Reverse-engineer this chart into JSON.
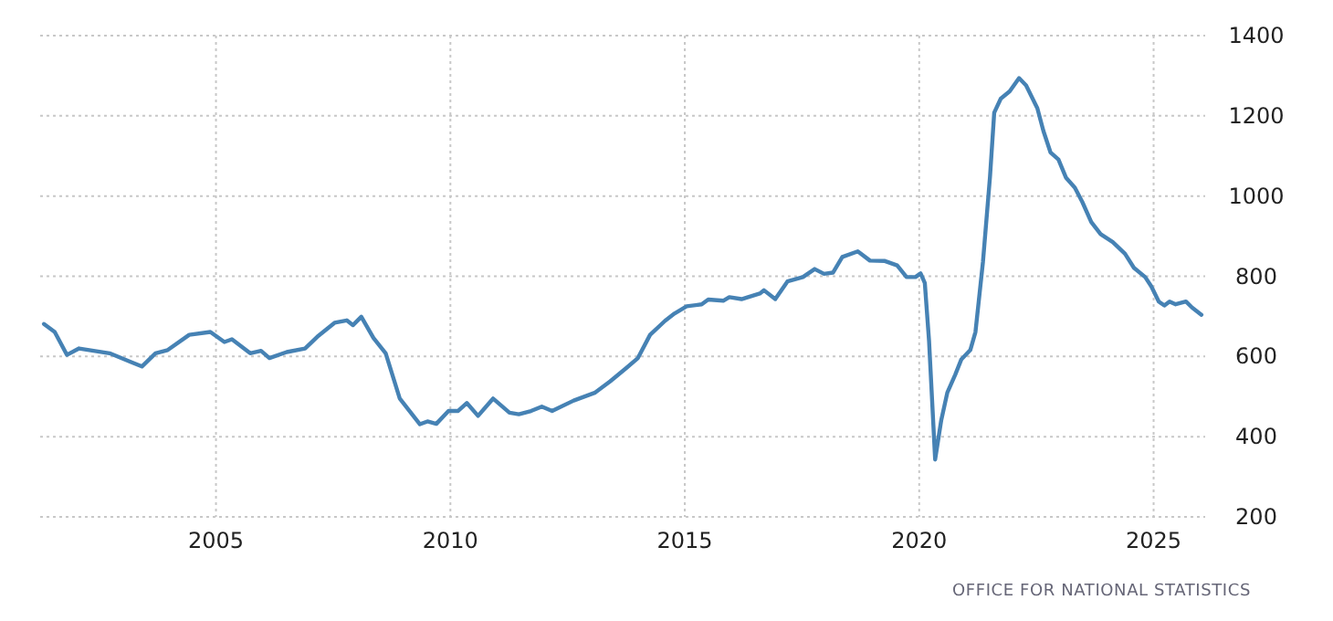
{
  "chart_data": {
    "type": "line",
    "x": [
      2001.33,
      2001.56,
      2001.82,
      2002.08,
      2002.73,
      2003.19,
      2003.42,
      2003.71,
      2003.97,
      2004.43,
      2004.88,
      2005.18,
      2005.34,
      2005.73,
      2005.96,
      2006.14,
      2006.51,
      2006.9,
      2007.16,
      2007.53,
      2007.79,
      2007.92,
      2008.1,
      2008.36,
      2008.62,
      2008.92,
      2009.35,
      2009.51,
      2009.7,
      2009.96,
      2010.16,
      2010.35,
      2010.59,
      2010.74,
      2010.91,
      2011.26,
      2011.46,
      2011.72,
      2011.95,
      2012.17,
      2012.63,
      2013.09,
      2013.41,
      2013.74,
      2014.0,
      2014.26,
      2014.58,
      2014.78,
      2015.04,
      2015.36,
      2015.5,
      2015.82,
      2015.95,
      2016.21,
      2016.6,
      2016.69,
      2016.93,
      2017.19,
      2017.52,
      2017.77,
      2017.97,
      2018.16,
      2018.36,
      2018.69,
      2018.95,
      2019.27,
      2019.53,
      2019.73,
      2019.92,
      2020.03,
      2020.12,
      2020.21,
      2020.34,
      2020.47,
      2020.6,
      2020.77,
      2020.9,
      2021.09,
      2021.2,
      2021.36,
      2021.51,
      2021.6,
      2021.74,
      2021.93,
      2022.13,
      2022.28,
      2022.52,
      2022.65,
      2022.8,
      2022.97,
      2023.13,
      2023.32,
      2023.48,
      2023.67,
      2023.87,
      2024.13,
      2024.39,
      2024.58,
      2024.82,
      2024.95,
      2025.11,
      2025.23,
      2025.34,
      2025.47,
      2025.69,
      2025.82,
      2026.02
    ],
    "series": [
      {
        "color": "#4682b4",
        "values": [
          681,
          661,
          604,
          620,
          608,
          586,
          575,
          608,
          616,
          654,
          661,
          636,
          643,
          608,
          614,
          596,
          611,
          620,
          649,
          684,
          690,
          678,
          699,
          646,
          608,
          495,
          431,
          438,
          432,
          464,
          464,
          484,
          452,
          472,
          495,
          460,
          456,
          464,
          475,
          464,
          490,
          510,
          538,
          570,
          596,
          654,
          689,
          707,
          725,
          730,
          742,
          739,
          748,
          743,
          757,
          765,
          743,
          787,
          798,
          818,
          806,
          809,
          848,
          862,
          839,
          838,
          827,
          798,
          798,
          807,
          783,
          639,
          343,
          441,
          510,
          555,
          593,
          616,
          661,
          836,
          1048,
          1208,
          1243,
          1261,
          1294,
          1276,
          1219,
          1162,
          1109,
          1091,
          1046,
          1021,
          985,
          935,
          905,
          885,
          856,
          821,
          798,
          775,
          737,
          727,
          737,
          730,
          737,
          722,
          704
        ]
      }
    ],
    "xlim": [
      2001.25,
      2026.1
    ],
    "xticks": [
      2005,
      2010,
      2015,
      2020,
      2025
    ],
    "ylim": [
      200,
      1400
    ],
    "yticks": [
      200,
      400,
      600,
      800,
      1000,
      1200,
      1400
    ],
    "grid": true,
    "line_style": "solid",
    "marker": "none",
    "annotations": [
      "OFFICE FOR NATIONAL STATISTICS"
    ]
  }
}
